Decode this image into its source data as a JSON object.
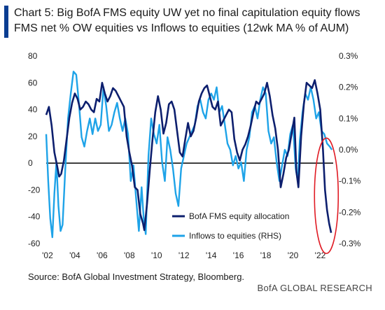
{
  "header": {
    "title": "Chart 5: Big BofA FMS equity UW yet no final capitulation equity flows",
    "subtitle": "FMS net % OW equities vs Inflows to equities (12wk MA % of AUM)"
  },
  "footer": {
    "source": "Source: BofA Global Investment Strategy, Bloomberg.",
    "brand": "BofA GLOBAL RESEARCH"
  },
  "colors": {
    "accent": "#0a3d91",
    "fms_series": "#0d1f6e",
    "flows_series": "#1ea3e8",
    "highlight_circle": "#e01b24"
  },
  "chart_data": {
    "type": "line",
    "xlim": [
      2001.9,
      2022.95
    ],
    "x_tick_labels": [
      "'02",
      "'04",
      "'06",
      "'08",
      "'10",
      "'12",
      "'14",
      "'16",
      "'18",
      "'20",
      "'22"
    ],
    "x_tick_values": [
      2002,
      2004,
      2006,
      2008,
      2010,
      2012,
      2014,
      2016,
      2018,
      2020,
      2022
    ],
    "left_axis": {
      "ylim": [
        -60,
        80
      ],
      "tick_values": [
        -60,
        -40,
        -20,
        0,
        20,
        40,
        60,
        80
      ],
      "tick_labels": [
        "-60",
        "-40",
        "-20",
        "0",
        "20",
        "40",
        "60",
        "80"
      ]
    },
    "right_axis": {
      "ylim": [
        -0.3,
        0.3
      ],
      "tick_values": [
        -0.3,
        -0.2,
        -0.1,
        0.0,
        0.1,
        0.2,
        0.3
      ],
      "tick_labels": [
        "-0.3%",
        "-0.2%",
        "-0.1%",
        "0.0%",
        "0.1%",
        "0.2%",
        "0.3%"
      ]
    },
    "grid": false,
    "legend_position": "bottom-right",
    "annotation": "red oval highlighting 2022 decline",
    "series": [
      {
        "name": "BofA FMS equity allocation",
        "axis": "left",
        "x": [
          2001.9,
          2002.1,
          2002.3,
          2002.5,
          2002.7,
          2002.85,
          2003.0,
          2003.2,
          2003.4,
          2003.6,
          2003.8,
          2004.0,
          2004.2,
          2004.4,
          2004.6,
          2004.8,
          2005.0,
          2005.2,
          2005.4,
          2005.6,
          2005.8,
          2006.0,
          2006.2,
          2006.4,
          2006.6,
          2006.8,
          2007.0,
          2007.2,
          2007.4,
          2007.6,
          2007.8,
          2008.0,
          2008.2,
          2008.4,
          2008.6,
          2008.8,
          2009.0,
          2009.1,
          2009.3,
          2009.5,
          2009.7,
          2009.9,
          2010.1,
          2010.3,
          2010.5,
          2010.7,
          2010.9,
          2011.1,
          2011.3,
          2011.5,
          2011.7,
          2011.9,
          2012.1,
          2012.3,
          2012.5,
          2012.7,
          2012.9,
          2013.1,
          2013.3,
          2013.5,
          2013.7,
          2013.9,
          2014.1,
          2014.3,
          2014.5,
          2014.7,
          2014.9,
          2015.1,
          2015.3,
          2015.5,
          2015.7,
          2015.9,
          2016.1,
          2016.3,
          2016.5,
          2016.7,
          2016.9,
          2017.1,
          2017.3,
          2017.5,
          2017.7,
          2017.9,
          2018.1,
          2018.3,
          2018.5,
          2018.7,
          2018.9,
          2019.1,
          2019.3,
          2019.5,
          2019.7,
          2019.9,
          2020.1,
          2020.25,
          2020.4,
          2020.6,
          2020.8,
          2021.0,
          2021.2,
          2021.4,
          2021.6,
          2021.8,
          2022.0,
          2022.2,
          2022.35,
          2022.5,
          2022.65,
          2022.8
        ],
        "values": [
          36,
          42,
          28,
          8,
          -2,
          -10,
          -8,
          2,
          18,
          34,
          45,
          52,
          48,
          40,
          42,
          46,
          44,
          40,
          38,
          48,
          46,
          60,
          52,
          46,
          50,
          56,
          54,
          50,
          46,
          42,
          20,
          8,
          -2,
          -18,
          -20,
          -38,
          -45,
          -50,
          -30,
          -5,
          18,
          38,
          50,
          40,
          22,
          30,
          44,
          46,
          40,
          24,
          8,
          5,
          18,
          30,
          20,
          24,
          34,
          46,
          52,
          56,
          58,
          50,
          42,
          40,
          46,
          28,
          32,
          36,
          40,
          38,
          18,
          8,
          2,
          10,
          14,
          20,
          28,
          38,
          46,
          44,
          48,
          52,
          60,
          50,
          36,
          26,
          10,
          -18,
          -8,
          4,
          10,
          22,
          34,
          -6,
          -18,
          20,
          44,
          60,
          58,
          56,
          62,
          52,
          40,
          10,
          -20,
          -35,
          -45,
          -52
        ]
      },
      {
        "name": "Inflows to equities (RHS)",
        "axis": "right",
        "x": [
          2001.9,
          2002.05,
          2002.2,
          2002.35,
          2002.5,
          2002.65,
          2002.8,
          2002.95,
          2003.1,
          2003.3,
          2003.5,
          2003.7,
          2003.9,
          2004.1,
          2004.3,
          2004.5,
          2004.7,
          2004.9,
          2005.1,
          2005.3,
          2005.5,
          2005.7,
          2005.9,
          2006.1,
          2006.3,
          2006.5,
          2006.7,
          2006.9,
          2007.1,
          2007.3,
          2007.5,
          2007.7,
          2007.9,
          2008.1,
          2008.3,
          2008.5,
          2008.7,
          2008.9,
          2009.05,
          2009.2,
          2009.4,
          2009.6,
          2009.8,
          2010.0,
          2010.2,
          2010.4,
          2010.6,
          2010.8,
          2011.0,
          2011.2,
          2011.4,
          2011.6,
          2011.8,
          2012.0,
          2012.2,
          2012.4,
          2012.6,
          2012.8,
          2013.0,
          2013.2,
          2013.4,
          2013.6,
          2013.8,
          2014.0,
          2014.2,
          2014.4,
          2014.6,
          2014.8,
          2015.0,
          2015.2,
          2015.4,
          2015.6,
          2015.8,
          2016.0,
          2016.2,
          2016.4,
          2016.6,
          2016.8,
          2017.0,
          2017.2,
          2017.4,
          2017.6,
          2017.8,
          2018.0,
          2018.2,
          2018.4,
          2018.6,
          2018.8,
          2019.0,
          2019.2,
          2019.4,
          2019.6,
          2019.8,
          2020.0,
          2020.2,
          2020.35,
          2020.5,
          2020.7,
          2020.9,
          2021.1,
          2021.3,
          2021.5,
          2021.7,
          2021.9,
          2022.1,
          2022.3,
          2022.5,
          2022.7,
          2022.85
        ],
        "values": [
          0.05,
          -0.1,
          -0.22,
          -0.28,
          -0.14,
          -0.04,
          -0.18,
          -0.26,
          -0.24,
          -0.06,
          0.1,
          0.18,
          0.25,
          0.24,
          0.15,
          0.04,
          0.01,
          0.06,
          0.1,
          0.05,
          0.1,
          0.06,
          0.08,
          0.2,
          0.14,
          0.06,
          0.08,
          0.12,
          0.15,
          0.1,
          0.06,
          0.1,
          0.05,
          -0.1,
          -0.05,
          -0.16,
          -0.26,
          -0.12,
          -0.22,
          -0.27,
          -0.02,
          0.1,
          0.05,
          0.02,
          0.08,
          -0.04,
          -0.1,
          0.04,
          0.0,
          -0.06,
          -0.14,
          -0.18,
          -0.06,
          -0.02,
          0.02,
          0.04,
          0.06,
          0.08,
          0.14,
          0.16,
          0.12,
          0.1,
          0.16,
          0.18,
          0.16,
          0.2,
          0.12,
          0.14,
          0.08,
          0.02,
          0.0,
          -0.05,
          -0.02,
          -0.06,
          -0.04,
          -0.1,
          0.0,
          0.04,
          0.12,
          0.14,
          0.1,
          0.16,
          0.2,
          0.18,
          0.06,
          0.02,
          0.04,
          -0.04,
          -0.1,
          -0.05,
          0.0,
          -0.02,
          0.05,
          0.08,
          -0.06,
          -0.1,
          0.03,
          0.12,
          0.18,
          0.16,
          0.2,
          0.16,
          0.1,
          0.12,
          0.06,
          0.05,
          0.02,
          0.01,
          0.0
        ]
      }
    ]
  }
}
